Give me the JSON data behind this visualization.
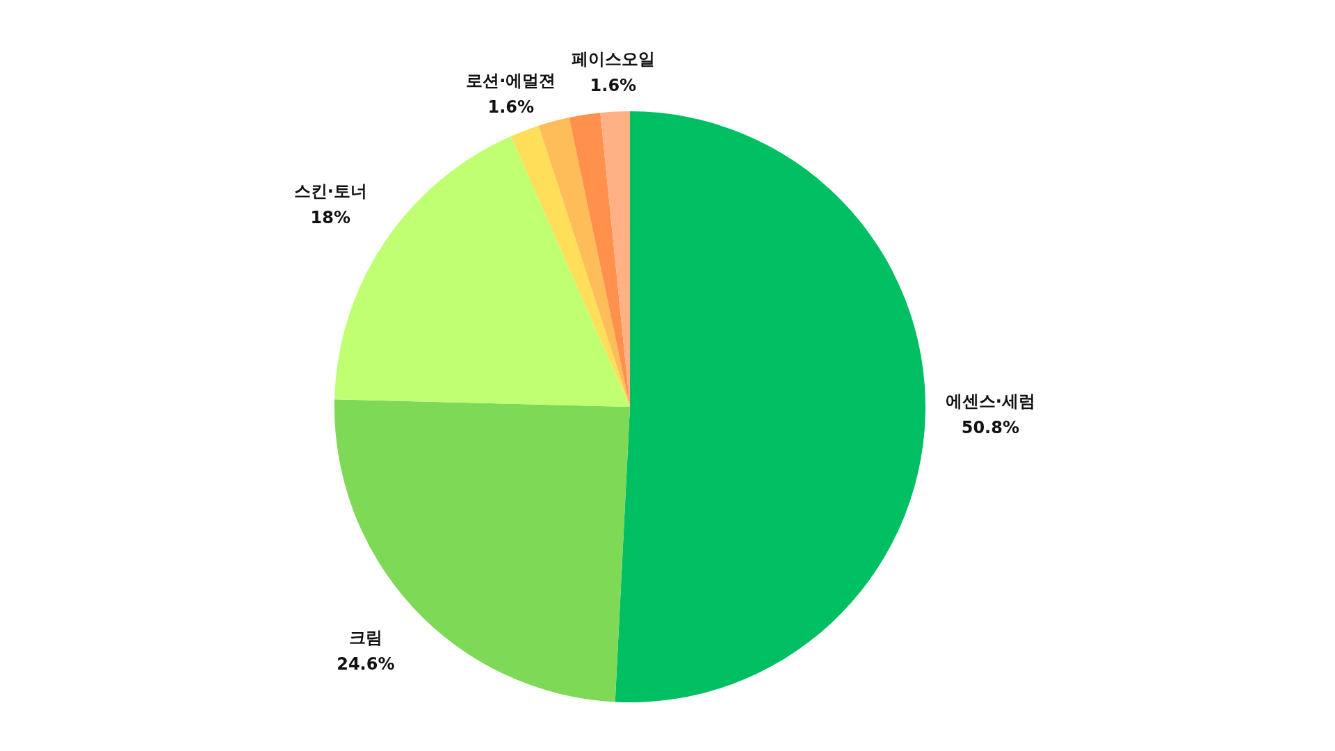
{
  "chart_data": {
    "type": "pie",
    "categories": [
      "에센스·세럼",
      "크림",
      "스킨·토너",
      "로션·에멀젼",
      null,
      null,
      "페이스오일"
    ],
    "values": [
      50.8,
      24.6,
      18,
      1.6,
      1.7,
      1.7,
      1.6
    ],
    "value_labels": [
      "50.8%",
      "24.6%",
      "18%",
      "1.6%",
      null,
      null,
      "1.6%"
    ],
    "colors": [
      "#00bf63",
      "#7ed957",
      "#c1ff72",
      "#ffde59",
      "#ffbd59",
      "#ff914d",
      "#ffb085"
    ],
    "legend": false
  }
}
